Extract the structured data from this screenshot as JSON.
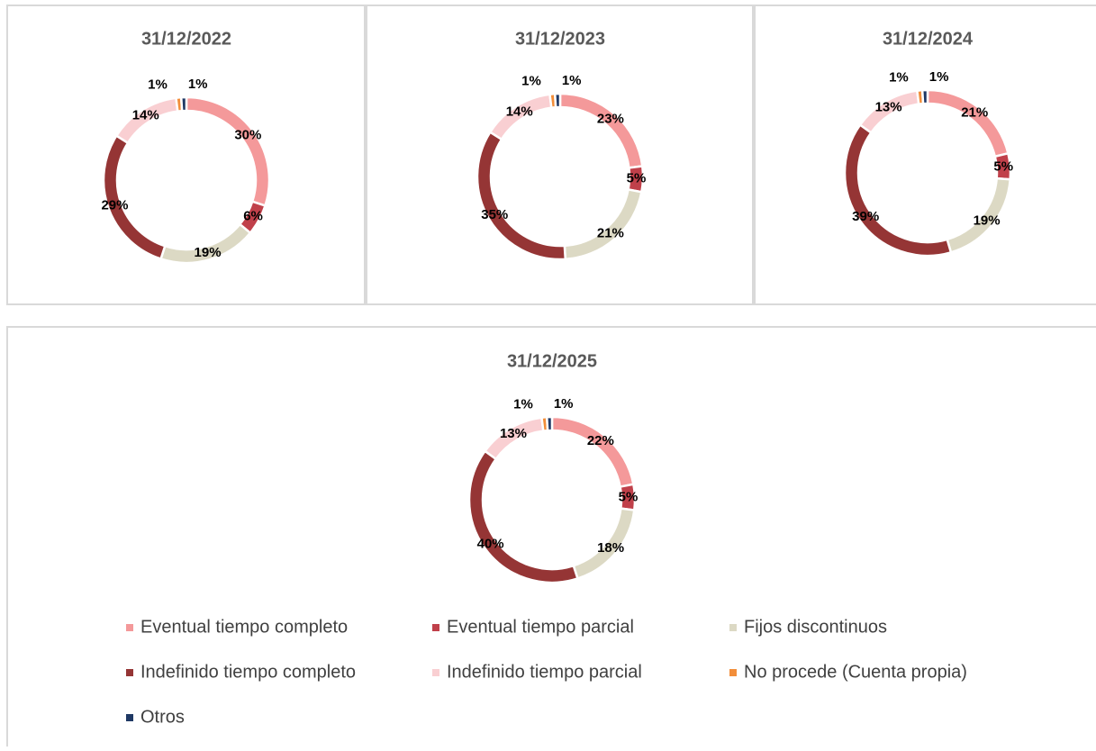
{
  "legend": {
    "categories": [
      "Eventual tiempo completo",
      "Eventual tiempo parcial",
      "Fijos discontinuos",
      "Indefinido tiempo completo",
      "Indefinido tiempo parcial",
      "No procede (Cuenta propia)",
      "Otros"
    ],
    "colors": [
      "#f4999a",
      "#c0404a",
      "#dcd9c4",
      "#953535",
      "#f9cfd2",
      "#f28e3a",
      "#1f3864"
    ]
  },
  "chart_data": [
    {
      "type": "pie",
      "donut": true,
      "title": "31/12/2022",
      "values": [
        30,
        6,
        19,
        29,
        14,
        1,
        1
      ],
      "value_labels": [
        "30%",
        "6%",
        "19%",
        "29%",
        "14%",
        "1%",
        "1%"
      ]
    },
    {
      "type": "pie",
      "donut": true,
      "title": "31/12/2023",
      "values": [
        23,
        5,
        21,
        35,
        14,
        1,
        1
      ],
      "value_labels": [
        "23%",
        "5%",
        "21%",
        "35%",
        "14%",
        "1%",
        "1%"
      ]
    },
    {
      "type": "pie",
      "donut": true,
      "title": "31/12/2024",
      "values": [
        21,
        5,
        19,
        39,
        13,
        1,
        1
      ],
      "value_labels": [
        "21%",
        "5%",
        "19%",
        "39%",
        "13%",
        "1%",
        "1%"
      ]
    },
    {
      "type": "pie",
      "donut": true,
      "title": "31/12/2025",
      "values": [
        22,
        5,
        18,
        40,
        13,
        1,
        1
      ],
      "value_labels": [
        "22%",
        "5%",
        "18%",
        "40%",
        "13%",
        "1%",
        "1%"
      ]
    }
  ]
}
